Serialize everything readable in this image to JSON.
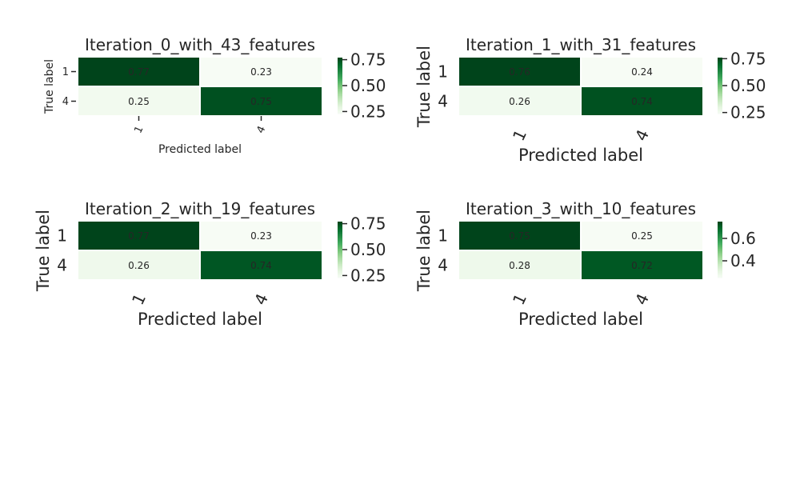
{
  "chart_data": [
    {
      "type": "heatmap",
      "title": "Iteration_0_with_43_features",
      "xlabel": "Predicted label",
      "ylabel": "True label",
      "x_categories": [
        "1",
        "4"
      ],
      "y_categories": [
        "1",
        "4"
      ],
      "values": [
        [
          0.77,
          0.23
        ],
        [
          0.25,
          0.75
        ]
      ],
      "cell_labels": [
        [
          "0.77",
          "0.23"
        ],
        [
          "0.25",
          "0.75"
        ]
      ],
      "colormap": "Greens",
      "colorbar": {
        "range": [
          0.23,
          0.77
        ],
        "ticks": [
          0.25,
          0.5,
          0.75
        ],
        "tick_labels": [
          "0.25",
          "0.50",
          "0.75"
        ]
      }
    },
    {
      "type": "heatmap",
      "title": "Iteration_1_with_31_features",
      "xlabel": "Predicted label",
      "ylabel": "True label",
      "x_categories": [
        "1",
        "4"
      ],
      "y_categories": [
        "1",
        "4"
      ],
      "values": [
        [
          0.76,
          0.24
        ],
        [
          0.26,
          0.74
        ]
      ],
      "cell_labels": [
        [
          "0.76",
          "0.24"
        ],
        [
          "0.26",
          "0.74"
        ]
      ],
      "colormap": "Greens",
      "colorbar": {
        "range": [
          0.24,
          0.76
        ],
        "ticks": [
          0.25,
          0.5,
          0.75
        ],
        "tick_labels": [
          "0.25",
          "0.50",
          "0.75"
        ]
      }
    },
    {
      "type": "heatmap",
      "title": "Iteration_2_with_19_features",
      "xlabel": "Predicted label",
      "ylabel": "True label",
      "x_categories": [
        "1",
        "4"
      ],
      "y_categories": [
        "1",
        "4"
      ],
      "values": [
        [
          0.77,
          0.23
        ],
        [
          0.26,
          0.74
        ]
      ],
      "cell_labels": [
        [
          "0.77",
          "0.23"
        ],
        [
          "0.26",
          "0.74"
        ]
      ],
      "colormap": "Greens",
      "colorbar": {
        "range": [
          0.23,
          0.77
        ],
        "ticks": [
          0.25,
          0.5,
          0.75
        ],
        "tick_labels": [
          "0.25",
          "0.50",
          "0.75"
        ]
      }
    },
    {
      "type": "heatmap",
      "title": "Iteration_3_with_10_features",
      "xlabel": "Predicted label",
      "ylabel": "True label",
      "x_categories": [
        "1",
        "4"
      ],
      "y_categories": [
        "1",
        "4"
      ],
      "values": [
        [
          0.75,
          0.25
        ],
        [
          0.28,
          0.72
        ]
      ],
      "cell_labels": [
        [
          "0.75",
          "0.25"
        ],
        [
          "0.28",
          "0.72"
        ]
      ],
      "colormap": "Greens",
      "colorbar": {
        "range": [
          0.25,
          0.75
        ],
        "ticks": [
          0.4,
          0.6
        ],
        "tick_labels": [
          "0.4",
          "0.6"
        ]
      }
    }
  ],
  "colors": {
    "dark": "#00441b",
    "light": "#f7fcf5",
    "text_dark": "#262626",
    "text_light": "#ffffff"
  }
}
